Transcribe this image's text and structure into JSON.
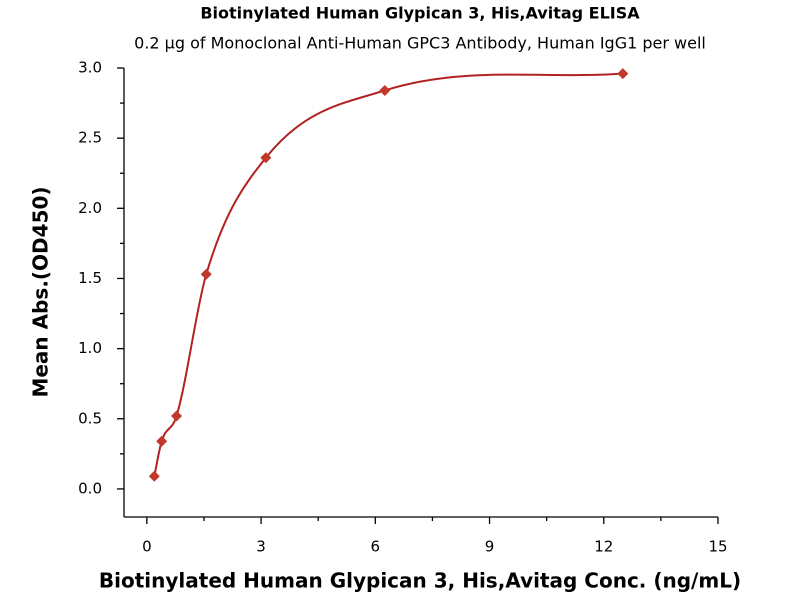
{
  "chart_data": {
    "type": "scatter",
    "title": "Biotinylated Human Glypican 3, His,Avitag ELISA",
    "subtitle": "0.2 µg of Monoclonal Anti-Human GPC3 Antibody, Human IgG1 per well",
    "x_label": "Biotinylated Human Glypican 3, His,Avitag Conc. (ng/mL)",
    "y_label": "Mean Abs.(OD450)",
    "x": [
      0.195,
      0.39,
      0.78,
      1.56,
      3.125,
      6.25,
      12.5
    ],
    "values": [
      0.09,
      0.34,
      0.52,
      1.53,
      2.36,
      2.84,
      2.96
    ],
    "color": "#c0392b",
    "line_color": "#b22222",
    "xlim": [
      -0.6,
      15
    ],
    "xticks": [
      0,
      3,
      6,
      9,
      12,
      15
    ],
    "ylim": [
      -0.2,
      3.0
    ],
    "yticks": [
      {
        "value": 0,
        "label": "0.0"
      },
      0.5,
      {
        "value": 1,
        "label": "1.0"
      },
      1.5,
      {
        "value": 2,
        "label": "2.0"
      },
      2.5,
      {
        "value": 3,
        "label": "3.0"
      }
    ],
    "grid": false
  }
}
